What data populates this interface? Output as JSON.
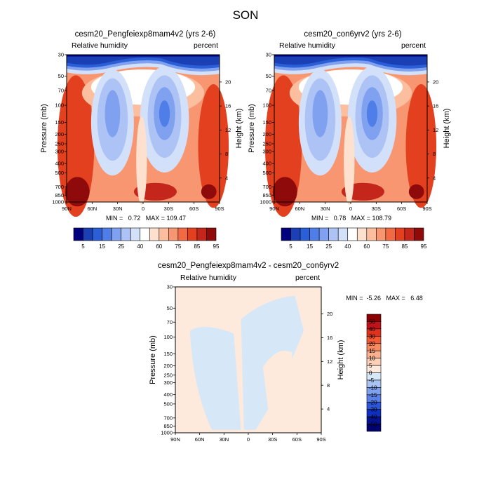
{
  "figure_title": "SON",
  "chart_data": [
    {
      "type": "heatmap",
      "title": "cesm20_Pengfeiexp8mam4v2 (yrs 2-6)",
      "left_label": "Relative humidity",
      "right_label": "percent",
      "xlabel": "",
      "ylabel": "Pressure (mb)",
      "y2label": "Height (km)",
      "x_ticks": [
        "90N",
        "60N",
        "30N",
        "0",
        "30S",
        "60S",
        "90S"
      ],
      "y_ticks": [
        "30",
        "50",
        "70",
        "100",
        "150",
        "200",
        "250",
        "300",
        "400",
        "500",
        "700",
        "850",
        "1000"
      ],
      "y2_ticks": [
        "20",
        "16",
        "12",
        "8",
        "4"
      ],
      "ylim": [
        1000,
        30
      ],
      "stats_text": "MIN =   0.72   MAX = 109.47",
      "min": 0.72,
      "max": 109.47,
      "colorbar": {
        "labels": [
          "5",
          "15",
          "25",
          "40",
          "60",
          "75",
          "85",
          "95"
        ],
        "colors": [
          "#00007f",
          "#1b3fb5",
          "#2b5fd8",
          "#4f7ee9",
          "#7fa1f0",
          "#adc3f5",
          "#d3e0f9",
          "#ffffff",
          "#fde0cd",
          "#fbbe9f",
          "#f79670",
          "#f26a44",
          "#e2401f",
          "#c4261b",
          "#8f0a0a"
        ]
      }
    },
    {
      "type": "heatmap",
      "title": "cesm20_con6yrv2 (yrs 2-6)",
      "left_label": "Relative humidity",
      "right_label": "percent",
      "xlabel": "",
      "ylabel": "Pressure (mb)",
      "y2label": "Height (km)",
      "x_ticks": [
        "90N",
        "60N",
        "30N",
        "0",
        "30S",
        "60S",
        "90S"
      ],
      "y_ticks": [
        "30",
        "50",
        "70",
        "100",
        "150",
        "200",
        "250",
        "300",
        "400",
        "500",
        "700",
        "850",
        "1000"
      ],
      "y2_ticks": [
        "20",
        "16",
        "12",
        "8",
        "4"
      ],
      "ylim": [
        1000,
        30
      ],
      "stats_text": "MIN =   0.78   MAX = 108.79",
      "min": 0.78,
      "max": 108.79,
      "colorbar": {
        "labels": [
          "5",
          "15",
          "25",
          "40",
          "60",
          "75",
          "85",
          "95"
        ],
        "colors": [
          "#00007f",
          "#1b3fb5",
          "#2b5fd8",
          "#4f7ee9",
          "#7fa1f0",
          "#adc3f5",
          "#d3e0f9",
          "#ffffff",
          "#fde0cd",
          "#fbbe9f",
          "#f79670",
          "#f26a44",
          "#e2401f",
          "#c4261b",
          "#8f0a0a"
        ]
      }
    },
    {
      "type": "heatmap",
      "title": "cesm20_Pengfeiexp8mam4v2 - cesm20_con6yrv2",
      "left_label": "Relative humidity",
      "right_label": "percent",
      "xlabel": "",
      "ylabel": "Pressure (mb)",
      "y2label": "Height (km)",
      "x_ticks": [
        "90N",
        "60N",
        "30N",
        "0",
        "30S",
        "60S",
        "90S"
      ],
      "y_ticks": [
        "30",
        "50",
        "70",
        "100",
        "150",
        "200",
        "250",
        "300",
        "400",
        "500",
        "700",
        "850",
        "1000"
      ],
      "y2_ticks": [
        "20",
        "16",
        "12",
        "8",
        "4"
      ],
      "ylim": [
        1000,
        30
      ],
      "stats_text": "MIN =  -5.26   MAX =   6.48",
      "min": -5.26,
      "max": 6.48,
      "colorbar": {
        "labels": [
          "50",
          "40",
          "30",
          "20",
          "15",
          "10",
          "5",
          "0",
          "-5",
          "-10",
          "-15",
          "-20",
          "-30",
          "-40",
          "-50"
        ],
        "colors": [
          "#8b0000",
          "#c1121c",
          "#e0311c",
          "#f45a35",
          "#f98a60",
          "#fbb08f",
          "#fdd0b8",
          "#fdeadc",
          "#d6e8f8",
          "#a8c4f2",
          "#7fa0ec",
          "#5b80e6",
          "#2d55d9",
          "#0e2fbf",
          "#04128f",
          "#00006e"
        ]
      }
    }
  ]
}
